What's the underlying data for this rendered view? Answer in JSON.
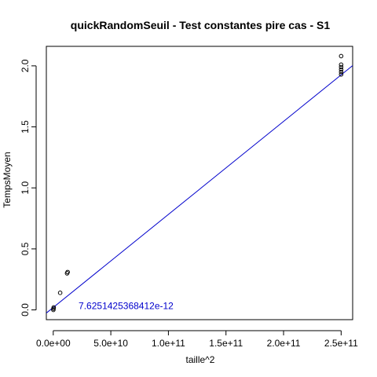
{
  "chart_data": {
    "type": "scatter",
    "title": "quickRandomSeuil - Test constantes pire cas - S1",
    "xlabel": "taille^2",
    "ylabel": "TempsMoyen",
    "xlim": [
      -6000000000,
      260000000000
    ],
    "ylim": [
      -0.08,
      2.16
    ],
    "x_ticks": [
      {
        "value": 0,
        "label": "0.0e+00"
      },
      {
        "value": 50000000000,
        "label": "5.0e+10"
      },
      {
        "value": 100000000000,
        "label": "1.0e+11"
      },
      {
        "value": 150000000000,
        "label": "1.5e+11"
      },
      {
        "value": 200000000000,
        "label": "2.0e+11"
      },
      {
        "value": 250000000000,
        "label": "2.5e+11"
      }
    ],
    "y_ticks": [
      {
        "value": 0.0,
        "label": "0.0"
      },
      {
        "value": 0.5,
        "label": "0.5"
      },
      {
        "value": 1.0,
        "label": "1.0"
      },
      {
        "value": 1.5,
        "label": "1.5"
      },
      {
        "value": 2.0,
        "label": "2.0"
      }
    ],
    "points": [
      {
        "x": 100000000,
        "y": 0.0
      },
      {
        "x": 200000000,
        "y": 0.01
      },
      {
        "x": 400000000,
        "y": 0.02
      },
      {
        "x": 6000000000,
        "y": 0.14
      },
      {
        "x": 12000000000,
        "y": 0.3
      },
      {
        "x": 12500000000,
        "y": 0.31
      },
      {
        "x": 250000000000,
        "y": 1.93
      },
      {
        "x": 250000000000,
        "y": 1.95
      },
      {
        "x": 250000000000,
        "y": 1.97
      },
      {
        "x": 250000000000,
        "y": 1.99
      },
      {
        "x": 250000000000,
        "y": 2.01
      },
      {
        "x": 250000000000,
        "y": 2.08
      }
    ],
    "fit_line": {
      "slope": 7.6251425368412e-12,
      "intercept": 0.02,
      "color": "#0000cc"
    },
    "annotation": {
      "text": "7.6251425368412e-12",
      "x": 22000000000,
      "y": 0.0,
      "color": "#0000cc"
    },
    "grid": false,
    "legend": "none"
  }
}
